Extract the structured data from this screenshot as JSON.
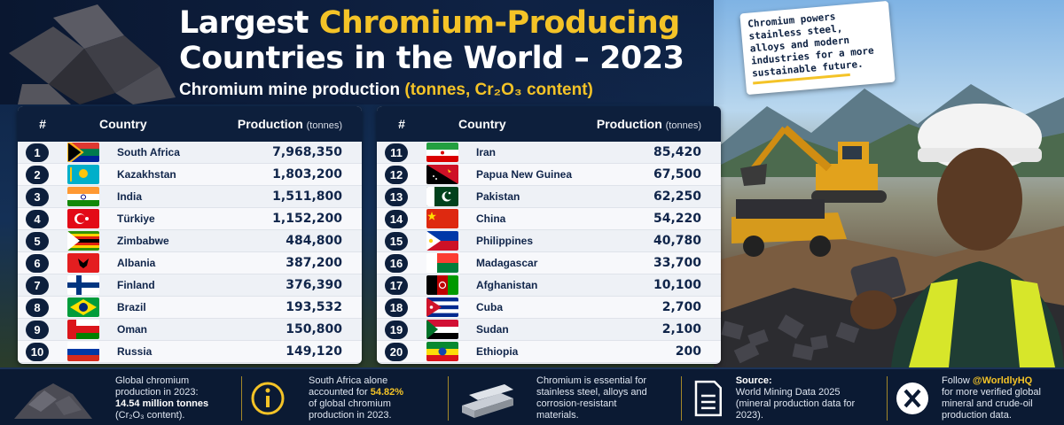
{
  "header": {
    "title_part1": "Largest ",
    "title_highlight": "Chromium-Producing",
    "title_line2": "Countries in the World – 2023",
    "subtitle_prefix": "Chromium mine production ",
    "subtitle_highlight": "(tonnes, Cr₂O₃ content)"
  },
  "note": {
    "text": "Chromium powers stainless steel, alloys and modern industries for a more sustainable future."
  },
  "table": {
    "col_rank": "#",
    "col_country": "Country",
    "col_production": "Production",
    "col_unit": "(tonnes)"
  },
  "chart_data": {
    "type": "table",
    "title": "Largest Chromium-Producing Countries in the World – 2023",
    "subtitle": "Chromium mine production (tonnes, Cr₂O₃ content)",
    "columns": [
      "#",
      "Country",
      "Production (tonnes)"
    ],
    "rows": [
      {
        "rank": "1",
        "country": "South Africa",
        "production": "7,968,350",
        "flag": "south-africa"
      },
      {
        "rank": "2",
        "country": "Kazakhstan",
        "production": "1,803,200",
        "flag": "kazakhstan"
      },
      {
        "rank": "3",
        "country": "India",
        "production": "1,511,800",
        "flag": "india"
      },
      {
        "rank": "4",
        "country": "Türkiye",
        "production": "1,152,200",
        "flag": "turkiye"
      },
      {
        "rank": "5",
        "country": "Zimbabwe",
        "production": "484,800",
        "flag": "zimbabwe"
      },
      {
        "rank": "6",
        "country": "Albania",
        "production": "387,200",
        "flag": "albania"
      },
      {
        "rank": "7",
        "country": "Finland",
        "production": "376,390",
        "flag": "finland"
      },
      {
        "rank": "8",
        "country": "Brazil",
        "production": "193,532",
        "flag": "brazil"
      },
      {
        "rank": "9",
        "country": "Oman",
        "production": "150,800",
        "flag": "oman"
      },
      {
        "rank": "10",
        "country": "Russia",
        "production": "149,120",
        "flag": "russia"
      },
      {
        "rank": "11",
        "country": "Iran",
        "production": "85,420",
        "flag": "iran"
      },
      {
        "rank": "12",
        "country": "Papua New Guinea",
        "production": "67,500",
        "flag": "papua-new-guinea"
      },
      {
        "rank": "13",
        "country": "Pakistan",
        "production": "62,250",
        "flag": "pakistan"
      },
      {
        "rank": "14",
        "country": "China",
        "production": "54,220",
        "flag": "china"
      },
      {
        "rank": "15",
        "country": "Philippines",
        "production": "40,780",
        "flag": "philippines"
      },
      {
        "rank": "16",
        "country": "Madagascar",
        "production": "33,700",
        "flag": "madagascar"
      },
      {
        "rank": "17",
        "country": "Afghanistan",
        "production": "10,100",
        "flag": "afghanistan"
      },
      {
        "rank": "18",
        "country": "Cuba",
        "production": "2,700",
        "flag": "cuba"
      },
      {
        "rank": "19",
        "country": "Sudan",
        "production": "2,100",
        "flag": "sudan"
      },
      {
        "rank": "20",
        "country": "Ethiopia",
        "production": "200",
        "flag": "ethiopia"
      }
    ]
  },
  "footer": {
    "global_line1": "Global chromium",
    "global_line2": "production in 2023:",
    "global_value": "14.54 million tonnes",
    "global_line4": "(Cr₂O₃ content).",
    "share_line1": "South Africa alone",
    "share_prefix": "accounted for ",
    "share_value": "54.82%",
    "share_line3": "of global chromium",
    "share_line4": "production in 2023.",
    "use_line1": "Chromium is essential for",
    "use_line2": "stainless steel, alloys and",
    "use_line3": "corrosion-resistant",
    "use_line4": "materials.",
    "source_label": "Source:",
    "source_line1": "World Mining Data 2025",
    "source_line2": "(mineral production data for 2023).",
    "follow_prefix": "Follow ",
    "follow_handle": "@WorldlyHQ",
    "follow_line2": "for more verified global",
    "follow_line3": "mineral and crude-oil",
    "follow_line4": "production data."
  },
  "colors": {
    "navy": "#0d1f3c",
    "gold": "#f4c327",
    "row_light": "#f7f8fb"
  }
}
